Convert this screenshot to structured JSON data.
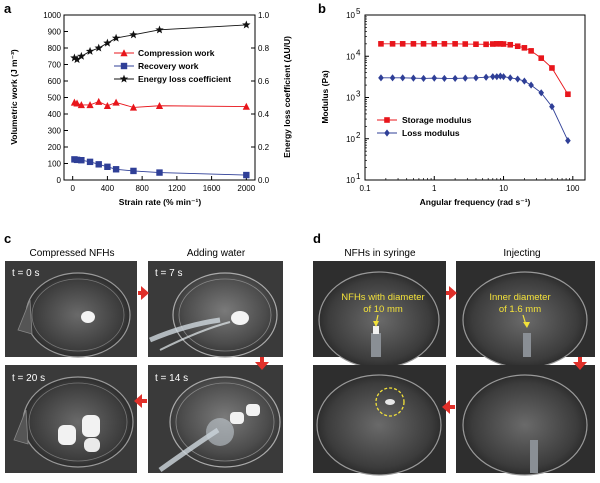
{
  "chart_data": [
    {
      "panel": "a",
      "type": "scatter",
      "xlabel": "Strain rate (% min⁻¹)",
      "ylabel": "Volumetric work (J m⁻³)",
      "y2label": "Energy loss coefficient (ΔU/U)",
      "xlim": [
        -100,
        2100
      ],
      "ylim": [
        0,
        1000
      ],
      "y2lim": [
        0,
        1.0
      ],
      "xticks": [
        "0",
        "400",
        "800",
        "1200",
        "1600",
        "2000"
      ],
      "yticks": [
        "0",
        "100",
        "200",
        "300",
        "400",
        "500",
        "600",
        "700",
        "800",
        "900",
        "1000"
      ],
      "y2ticks": [
        "0.0",
        "0.2",
        "0.4",
        "0.6",
        "0.8",
        "1.0"
      ],
      "legend_position": "middle-right",
      "series": [
        {
          "name": "Compression work",
          "axis": "left",
          "color": "#e8151b",
          "marker": "triangle",
          "x": [
            20,
            50,
            100,
            200,
            300,
            400,
            500,
            700,
            1000,
            2000
          ],
          "y": [
            470,
            465,
            455,
            455,
            475,
            450,
            470,
            440,
            450,
            445
          ]
        },
        {
          "name": "Recovery work",
          "axis": "left",
          "color": "#2f3f97",
          "marker": "square",
          "x": [
            20,
            50,
            100,
            200,
            300,
            400,
            500,
            700,
            1000,
            2000
          ],
          "y": [
            125,
            122,
            120,
            110,
            95,
            80,
            65,
            55,
            45,
            30
          ]
        },
        {
          "name": "Energy loss coefficient",
          "axis": "right",
          "color": "#111111",
          "marker": "star",
          "x": [
            20,
            50,
            100,
            200,
            300,
            400,
            500,
            700,
            1000,
            2000
          ],
          "y": [
            0.74,
            0.73,
            0.75,
            0.78,
            0.8,
            0.83,
            0.86,
            0.88,
            0.91,
            0.94
          ]
        }
      ]
    },
    {
      "panel": "b",
      "type": "line",
      "xscale": "log",
      "yscale": "log",
      "xlabel": "Angular frequency (rad s⁻¹)",
      "ylabel": "Modulus (Pa)",
      "xlim": [
        0.1,
        150
      ],
      "ylim": [
        10,
        100000
      ],
      "xticks": [
        "0.1",
        "1",
        "10",
        "100"
      ],
      "ytick_exponents": [
        "1",
        "2",
        "3",
        "4",
        "5"
      ],
      "legend_position": "lower-left",
      "series": [
        {
          "name": "Storage modulus",
          "color": "#e8151b",
          "marker": "square",
          "x": [
            0.17,
            0.25,
            0.35,
            0.5,
            0.7,
            1.0,
            1.4,
            2.0,
            2.8,
            4.0,
            5.6,
            7.0,
            8.0,
            9.0,
            10.0,
            12.5,
            16,
            20,
            25,
            35,
            50,
            85
          ],
          "y": [
            20000,
            20000,
            20000,
            20000,
            20000,
            20000,
            20000,
            20000,
            19800,
            19600,
            19500,
            19800,
            20000,
            20000,
            19800,
            19000,
            17500,
            16000,
            13500,
            9000,
            5200,
            1200
          ]
        },
        {
          "name": "Loss modulus",
          "color": "#2f3f97",
          "marker": "diamond",
          "x": [
            0.17,
            0.25,
            0.35,
            0.5,
            0.7,
            1.0,
            1.4,
            2.0,
            2.8,
            4.0,
            5.6,
            7.0,
            8.0,
            9.0,
            10.0,
            12.5,
            16,
            20,
            25,
            35,
            50,
            85
          ],
          "y": [
            3000,
            3000,
            3000,
            2950,
            2900,
            2950,
            2900,
            2900,
            2950,
            3000,
            3100,
            3200,
            3200,
            3300,
            3200,
            3000,
            2800,
            2500,
            2000,
            1300,
            600,
            90
          ]
        }
      ]
    }
  ],
  "panels": {
    "a": "a",
    "b": "b",
    "c": "c",
    "d": "d"
  },
  "photos_c": {
    "caption_left": "Compressed NFHs",
    "caption_right": "Adding water",
    "labels": [
      "t = 0 s",
      "t = 7 s",
      "t = 20 s",
      "t = 14 s"
    ]
  },
  "photos_d": {
    "caption_left": "NFHs in syringe",
    "caption_right": "Injecting",
    "annotation_left": [
      "NFHs with diameter",
      "of 10 mm"
    ],
    "annotation_right": [
      "Inner diameter",
      "of 1.6 mm"
    ]
  },
  "colors": {
    "red": "#e8151b",
    "blue": "#2f3f97",
    "black": "#111111",
    "yellow_annotation": "#f3e23a",
    "arrow": "#e0302a"
  }
}
